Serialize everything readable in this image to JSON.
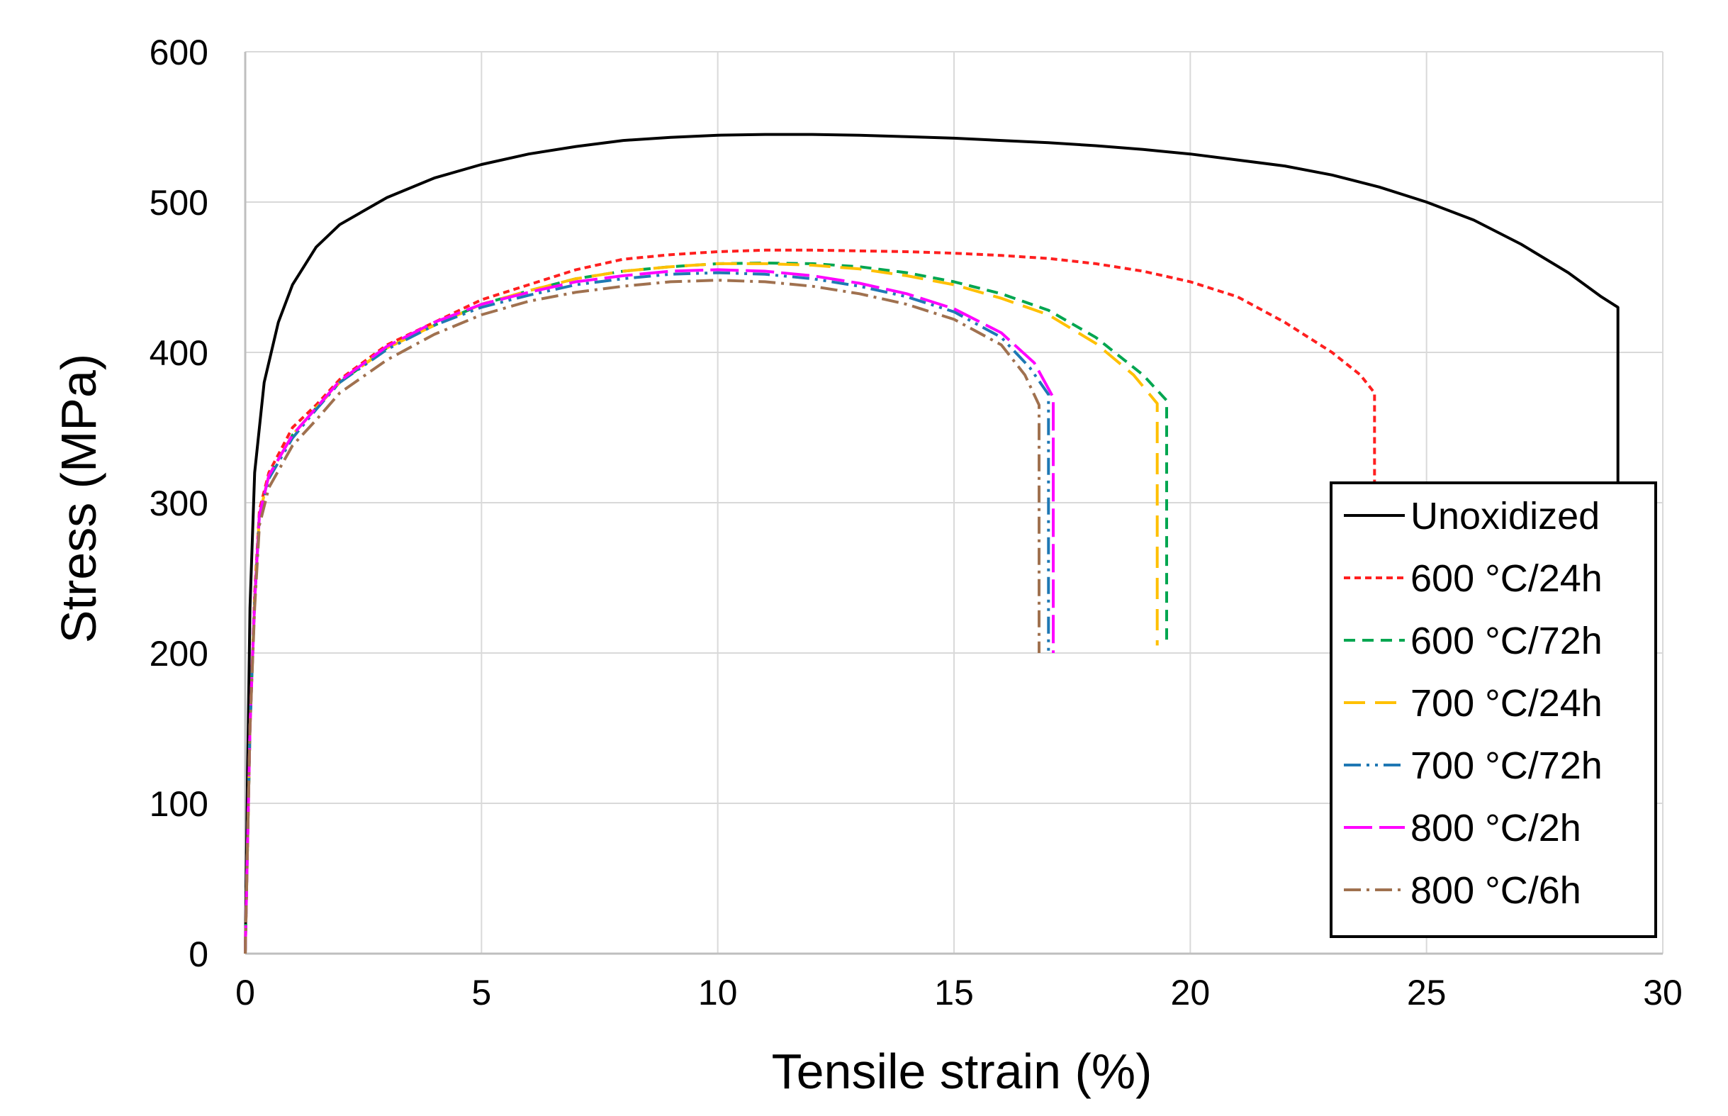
{
  "chart_data": {
    "type": "line",
    "title": "",
    "xlabel": "Tensile strain (%)",
    "ylabel": "Stress (MPa)",
    "xlim": [
      0,
      30
    ],
    "ylim": [
      0,
      600
    ],
    "xticks": [
      0,
      5,
      10,
      15,
      20,
      25,
      30
    ],
    "yticks": [
      0,
      100,
      200,
      300,
      400,
      500,
      600
    ],
    "grid": true,
    "legend_position": "bottom-right",
    "series": [
      {
        "name": "Unoxidized",
        "color": "#000000",
        "dash": "solid",
        "points": [
          [
            0,
            0
          ],
          [
            0.05,
            120
          ],
          [
            0.1,
            230
          ],
          [
            0.2,
            320
          ],
          [
            0.4,
            380
          ],
          [
            0.7,
            420
          ],
          [
            1,
            445
          ],
          [
            1.5,
            470
          ],
          [
            2,
            485
          ],
          [
            3,
            503
          ],
          [
            4,
            516
          ],
          [
            5,
            525
          ],
          [
            6,
            532
          ],
          [
            7,
            537
          ],
          [
            8,
            541
          ],
          [
            9,
            543
          ],
          [
            10,
            544.5
          ],
          [
            11,
            545
          ],
          [
            12,
            545
          ],
          [
            13,
            544.5
          ],
          [
            14,
            543.5
          ],
          [
            15,
            542.5
          ],
          [
            16,
            541
          ],
          [
            17,
            539.5
          ],
          [
            18,
            537.5
          ],
          [
            19,
            535
          ],
          [
            20,
            532
          ],
          [
            21,
            528
          ],
          [
            22,
            524
          ],
          [
            23,
            518
          ],
          [
            24,
            510
          ],
          [
            25,
            500
          ],
          [
            26,
            488
          ],
          [
            27,
            472
          ],
          [
            28,
            453
          ],
          [
            28.7,
            437
          ],
          [
            29.05,
            430
          ],
          [
            29.05,
            310
          ]
        ]
      },
      {
        "name": "600 °C/24h",
        "color": "#ff1f1f",
        "dash": "short-dash",
        "points": [
          [
            0,
            0
          ],
          [
            0.1,
            150
          ],
          [
            0.2,
            240
          ],
          [
            0.3,
            295
          ],
          [
            0.5,
            320
          ],
          [
            1,
            350
          ],
          [
            1.5,
            365
          ],
          [
            2,
            382
          ],
          [
            3,
            405
          ],
          [
            4,
            420
          ],
          [
            5,
            435
          ],
          [
            6,
            445
          ],
          [
            7,
            455
          ],
          [
            8,
            462
          ],
          [
            9,
            465
          ],
          [
            10,
            467
          ],
          [
            11,
            468
          ],
          [
            12,
            468
          ],
          [
            13,
            467.5
          ],
          [
            14,
            467
          ],
          [
            15,
            466
          ],
          [
            16,
            464.5
          ],
          [
            17,
            462.5
          ],
          [
            18,
            459
          ],
          [
            19,
            454
          ],
          [
            20,
            447
          ],
          [
            21,
            437
          ],
          [
            22,
            420
          ],
          [
            23,
            400
          ],
          [
            23.6,
            385
          ],
          [
            23.9,
            373
          ],
          [
            23.9,
            310
          ]
        ]
      },
      {
        "name": "600 °C/72h",
        "color": "#00a650",
        "dash": "medium-dash",
        "points": [
          [
            0,
            0
          ],
          [
            0.1,
            150
          ],
          [
            0.2,
            235
          ],
          [
            0.3,
            292
          ],
          [
            0.5,
            318
          ],
          [
            1,
            345
          ],
          [
            1.5,
            363
          ],
          [
            2,
            380
          ],
          [
            3,
            403
          ],
          [
            4,
            418
          ],
          [
            5,
            432
          ],
          [
            6,
            441
          ],
          [
            7,
            449
          ],
          [
            8,
            454
          ],
          [
            9,
            457
          ],
          [
            10,
            459
          ],
          [
            11,
            459.5
          ],
          [
            12,
            459
          ],
          [
            13,
            457
          ],
          [
            14,
            453
          ],
          [
            15,
            447
          ],
          [
            16,
            439
          ],
          [
            17,
            428
          ],
          [
            18,
            410
          ],
          [
            19,
            385
          ],
          [
            19.5,
            368
          ],
          [
            19.5,
            205
          ]
        ]
      },
      {
        "name": "700 °C/24h",
        "color": "#ffc000",
        "dash": "long-dash",
        "points": [
          [
            0,
            0
          ],
          [
            0.1,
            150
          ],
          [
            0.2,
            235
          ],
          [
            0.3,
            292
          ],
          [
            0.5,
            318
          ],
          [
            1,
            345
          ],
          [
            1.5,
            363
          ],
          [
            2,
            380
          ],
          [
            3,
            403
          ],
          [
            4,
            418
          ],
          [
            5,
            432
          ],
          [
            6,
            441
          ],
          [
            7,
            449
          ],
          [
            8,
            454
          ],
          [
            9,
            457
          ],
          [
            10,
            459
          ],
          [
            11,
            459
          ],
          [
            12,
            458
          ],
          [
            13,
            455.5
          ],
          [
            14,
            451
          ],
          [
            15,
            445
          ],
          [
            16,
            436
          ],
          [
            17,
            425
          ],
          [
            18,
            406
          ],
          [
            18.8,
            385
          ],
          [
            19.3,
            366
          ],
          [
            19.3,
            205
          ]
        ]
      },
      {
        "name": "700 °C/72h",
        "color": "#1f78b4",
        "dash": "dash-dot-dot",
        "points": [
          [
            0,
            0
          ],
          [
            0.1,
            150
          ],
          [
            0.2,
            235
          ],
          [
            0.3,
            290
          ],
          [
            0.5,
            316
          ],
          [
            1,
            343
          ],
          [
            1.5,
            362
          ],
          [
            2,
            380
          ],
          [
            3,
            402
          ],
          [
            4,
            418
          ],
          [
            5,
            430
          ],
          [
            6,
            438
          ],
          [
            7,
            445
          ],
          [
            8,
            449
          ],
          [
            9,
            452
          ],
          [
            10,
            453
          ],
          [
            11,
            452
          ],
          [
            12,
            449
          ],
          [
            13,
            444
          ],
          [
            14,
            437
          ],
          [
            15,
            427
          ],
          [
            16,
            410
          ],
          [
            16.6,
            390
          ],
          [
            17.0,
            372
          ],
          [
            17.0,
            200
          ]
        ]
      },
      {
        "name": "800 °C/2h",
        "color": "#ff00ff",
        "dash": "long-dash-gap",
        "points": [
          [
            0,
            0
          ],
          [
            0.1,
            150
          ],
          [
            0.2,
            235
          ],
          [
            0.3,
            292
          ],
          [
            0.5,
            318
          ],
          [
            1,
            345
          ],
          [
            1.5,
            363
          ],
          [
            2,
            381
          ],
          [
            3,
            404
          ],
          [
            4,
            420
          ],
          [
            5,
            432
          ],
          [
            6,
            440
          ],
          [
            7,
            447
          ],
          [
            8,
            451
          ],
          [
            9,
            454
          ],
          [
            10,
            455
          ],
          [
            11,
            454
          ],
          [
            12,
            451
          ],
          [
            13,
            446
          ],
          [
            14,
            439
          ],
          [
            15,
            429
          ],
          [
            16,
            413
          ],
          [
            16.7,
            393
          ],
          [
            17.1,
            370
          ],
          [
            17.1,
            200
          ]
        ]
      },
      {
        "name": "800 °C/6h",
        "color": "#a0714f",
        "dash": "dash-dot",
        "points": [
          [
            0,
            0
          ],
          [
            0.1,
            150
          ],
          [
            0.2,
            230
          ],
          [
            0.3,
            285
          ],
          [
            0.5,
            310
          ],
          [
            1,
            338
          ],
          [
            1.5,
            355
          ],
          [
            2,
            373
          ],
          [
            3,
            395
          ],
          [
            4,
            412
          ],
          [
            5,
            425
          ],
          [
            6,
            434
          ],
          [
            7,
            440
          ],
          [
            8,
            444
          ],
          [
            9,
            447
          ],
          [
            10,
            448
          ],
          [
            11,
            447
          ],
          [
            12,
            444
          ],
          [
            13,
            439
          ],
          [
            14,
            432
          ],
          [
            15,
            422
          ],
          [
            16,
            405
          ],
          [
            16.5,
            385
          ],
          [
            16.8,
            365
          ],
          [
            16.8,
            200
          ]
        ]
      }
    ]
  }
}
